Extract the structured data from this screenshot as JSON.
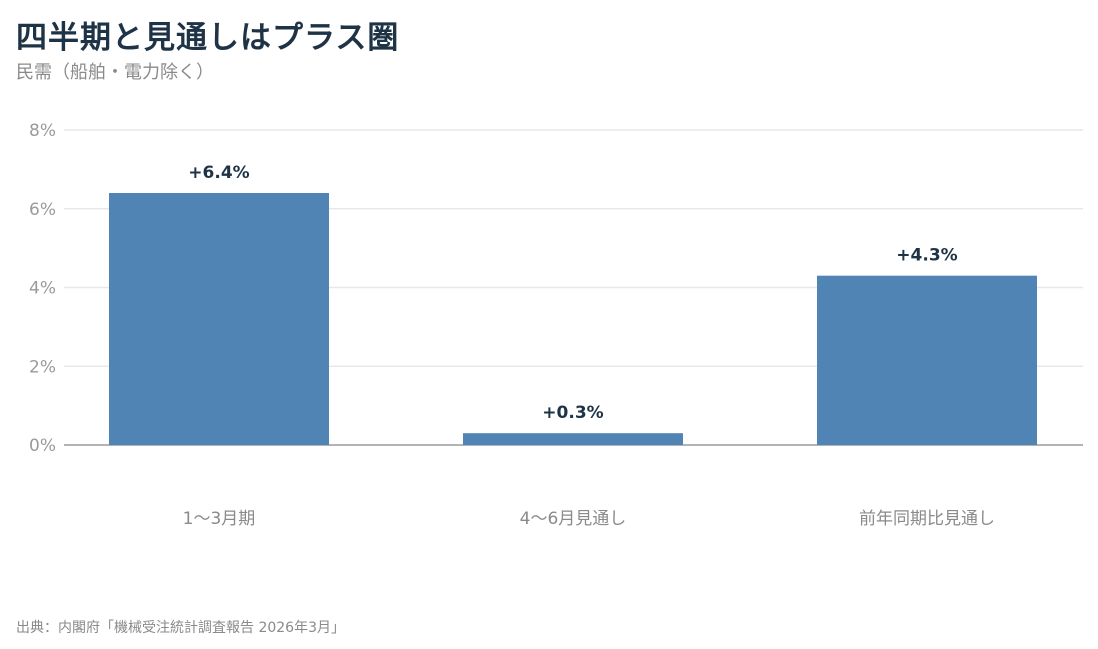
{
  "header": {
    "title": "四半期と見通しはプラス圏",
    "subtitle": "民需（船舶・電力除く）"
  },
  "footer": {
    "source": "出典：内閣府「機械受注統計調査報告 2026年3月」"
  },
  "colors": {
    "bar": "#4f84b4",
    "title": "#1f3346",
    "grid": "#e8e8e8",
    "axis": "#9a9a9a"
  },
  "chart_data": {
    "type": "bar",
    "categories": [
      "1〜3月期",
      "4〜6月見通し",
      "前年同期比見通し"
    ],
    "values": [
      6.4,
      0.3,
      4.3
    ],
    "data_labels": [
      "+6.4%",
      "+0.3%",
      "+4.3%"
    ],
    "title": "四半期と見通しはプラス圏",
    "subtitle": "民需（船舶・電力除く）",
    "xlabel": "",
    "ylabel": "",
    "ylim": [
      0,
      8
    ],
    "yticks": [
      0,
      2,
      4,
      6,
      8
    ],
    "ytick_labels": [
      "0%",
      "2%",
      "4%",
      "6%",
      "8%"
    ],
    "grid": true,
    "legend": "none"
  }
}
